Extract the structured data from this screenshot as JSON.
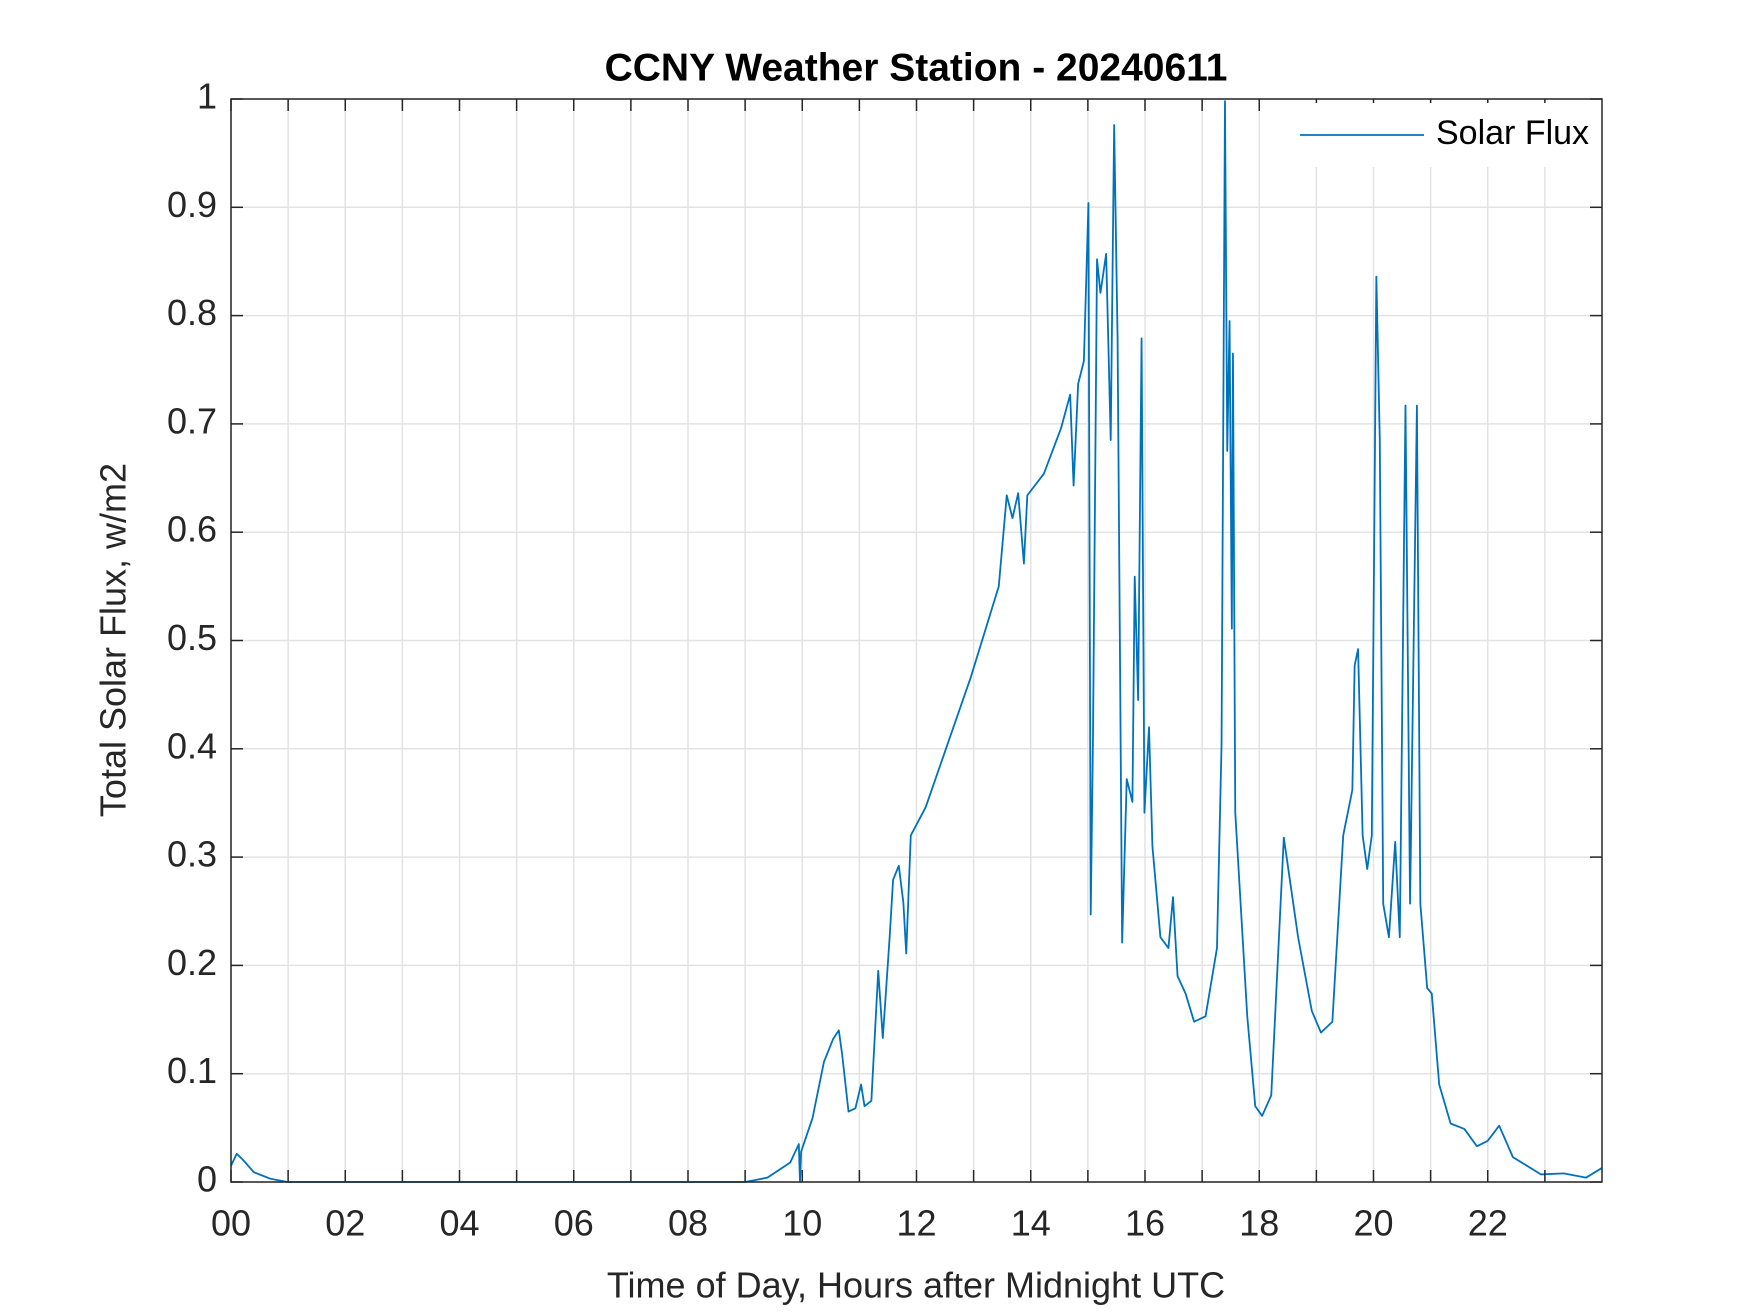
{
  "chart_data": {
    "type": "line",
    "title": "CCNY Weather Station - 20240611",
    "xlabel": "Time of Day, Hours after Midnight UTC",
    "ylabel": "Total Solar Flux, w/m2",
    "xlim": [
      0,
      24
    ],
    "ylim": [
      0,
      1
    ],
    "xticks": [
      {
        "value": 0,
        "label": "00"
      },
      {
        "value": 2,
        "label": "02"
      },
      {
        "value": 4,
        "label": "04"
      },
      {
        "value": 6,
        "label": "06"
      },
      {
        "value": 8,
        "label": "08"
      },
      {
        "value": 10,
        "label": "10"
      },
      {
        "value": 12,
        "label": "12"
      },
      {
        "value": 14,
        "label": "14"
      },
      {
        "value": 16,
        "label": "16"
      },
      {
        "value": 18,
        "label": "18"
      },
      {
        "value": 20,
        "label": "20"
      },
      {
        "value": 22,
        "label": "22"
      }
    ],
    "xminorticks": [
      1,
      3,
      5,
      7,
      9,
      11,
      13,
      15,
      17,
      19,
      21,
      23
    ],
    "yticks": [
      0,
      0.1,
      0.2,
      0.3,
      0.4,
      0.5,
      0.6,
      0.7,
      0.8,
      0.9,
      1
    ],
    "grid": true,
    "legend": "upper right",
    "x": [
      0.0,
      0.1,
      0.2,
      0.4,
      0.69,
      0.99,
      9.0,
      9.39,
      9.79,
      9.94,
      9.96,
      9.98,
      10.18,
      10.38,
      10.54,
      10.64,
      10.7,
      10.81,
      10.93,
      11.03,
      11.09,
      11.21,
      11.33,
      11.41,
      11.53,
      11.59,
      11.69,
      11.77,
      11.82,
      11.9,
      12.16,
      12.95,
      13.44,
      13.58,
      13.68,
      13.78,
      13.88,
      13.94,
      14.23,
      14.53,
      14.69,
      14.75,
      14.83,
      14.93,
      15.01,
      15.05,
      15.09,
      15.16,
      15.22,
      15.32,
      15.4,
      15.46,
      15.52,
      15.6,
      15.68,
      15.78,
      15.82,
      15.88,
      15.94,
      15.99,
      16.07,
      16.13,
      16.27,
      16.41,
      16.49,
      16.57,
      16.71,
      16.86,
      17.06,
      17.26,
      17.34,
      17.4,
      17.44,
      17.48,
      17.52,
      17.54,
      17.58,
      17.79,
      17.93,
      18.05,
      18.21,
      18.43,
      18.68,
      18.92,
      19.08,
      19.28,
      19.47,
      19.63,
      19.67,
      19.73,
      19.81,
      19.89,
      19.97,
      20.05,
      20.11,
      20.17,
      20.27,
      20.38,
      20.46,
      20.56,
      20.64,
      20.76,
      20.82,
      20.94,
      21.02,
      21.15,
      21.35,
      21.59,
      21.81,
      22.0,
      22.2,
      22.44,
      22.93,
      23.33,
      23.72,
      24.0
    ],
    "series": [
      {
        "name": "Solar Flux",
        "color": "#0072bd",
        "values": [
          0.015,
          0.026,
          0.021,
          0.009,
          0.003,
          0,
          0,
          0.004,
          0.018,
          0.035,
          0,
          0.028,
          0.059,
          0.111,
          0.132,
          0.14,
          0.117,
          0.065,
          0.068,
          0.09,
          0.07,
          0.075,
          0.195,
          0.133,
          0.226,
          0.279,
          0.292,
          0.258,
          0.211,
          0.32,
          0.346,
          0.466,
          0.55,
          0.634,
          0.613,
          0.636,
          0.571,
          0.634,
          0.654,
          0.696,
          0.727,
          0.643,
          0.737,
          0.758,
          0.904,
          0.247,
          0.414,
          0.852,
          0.821,
          0.857,
          0.685,
          0.976,
          0.779,
          0.221,
          0.372,
          0.351,
          0.559,
          0.445,
          0.779,
          0.341,
          0.42,
          0.31,
          0.226,
          0.216,
          0.263,
          0.19,
          0.174,
          0.148,
          0.153,
          0.216,
          0.404,
          0.998,
          0.675,
          0.795,
          0.511,
          0.765,
          0.341,
          0.153,
          0.07,
          0.061,
          0.08,
          0.318,
          0.226,
          0.158,
          0.138,
          0.148,
          0.32,
          0.362,
          0.477,
          0.492,
          0.32,
          0.289,
          0.32,
          0.836,
          0.685,
          0.257,
          0.226,
          0.314,
          0.226,
          0.717,
          0.257,
          0.717,
          0.257,
          0.179,
          0.174,
          0.09,
          0.054,
          0.049,
          0.033,
          0.038,
          0.052,
          0.023,
          0.007,
          0.008,
          0.004,
          0.013
        ]
      }
    ]
  }
}
